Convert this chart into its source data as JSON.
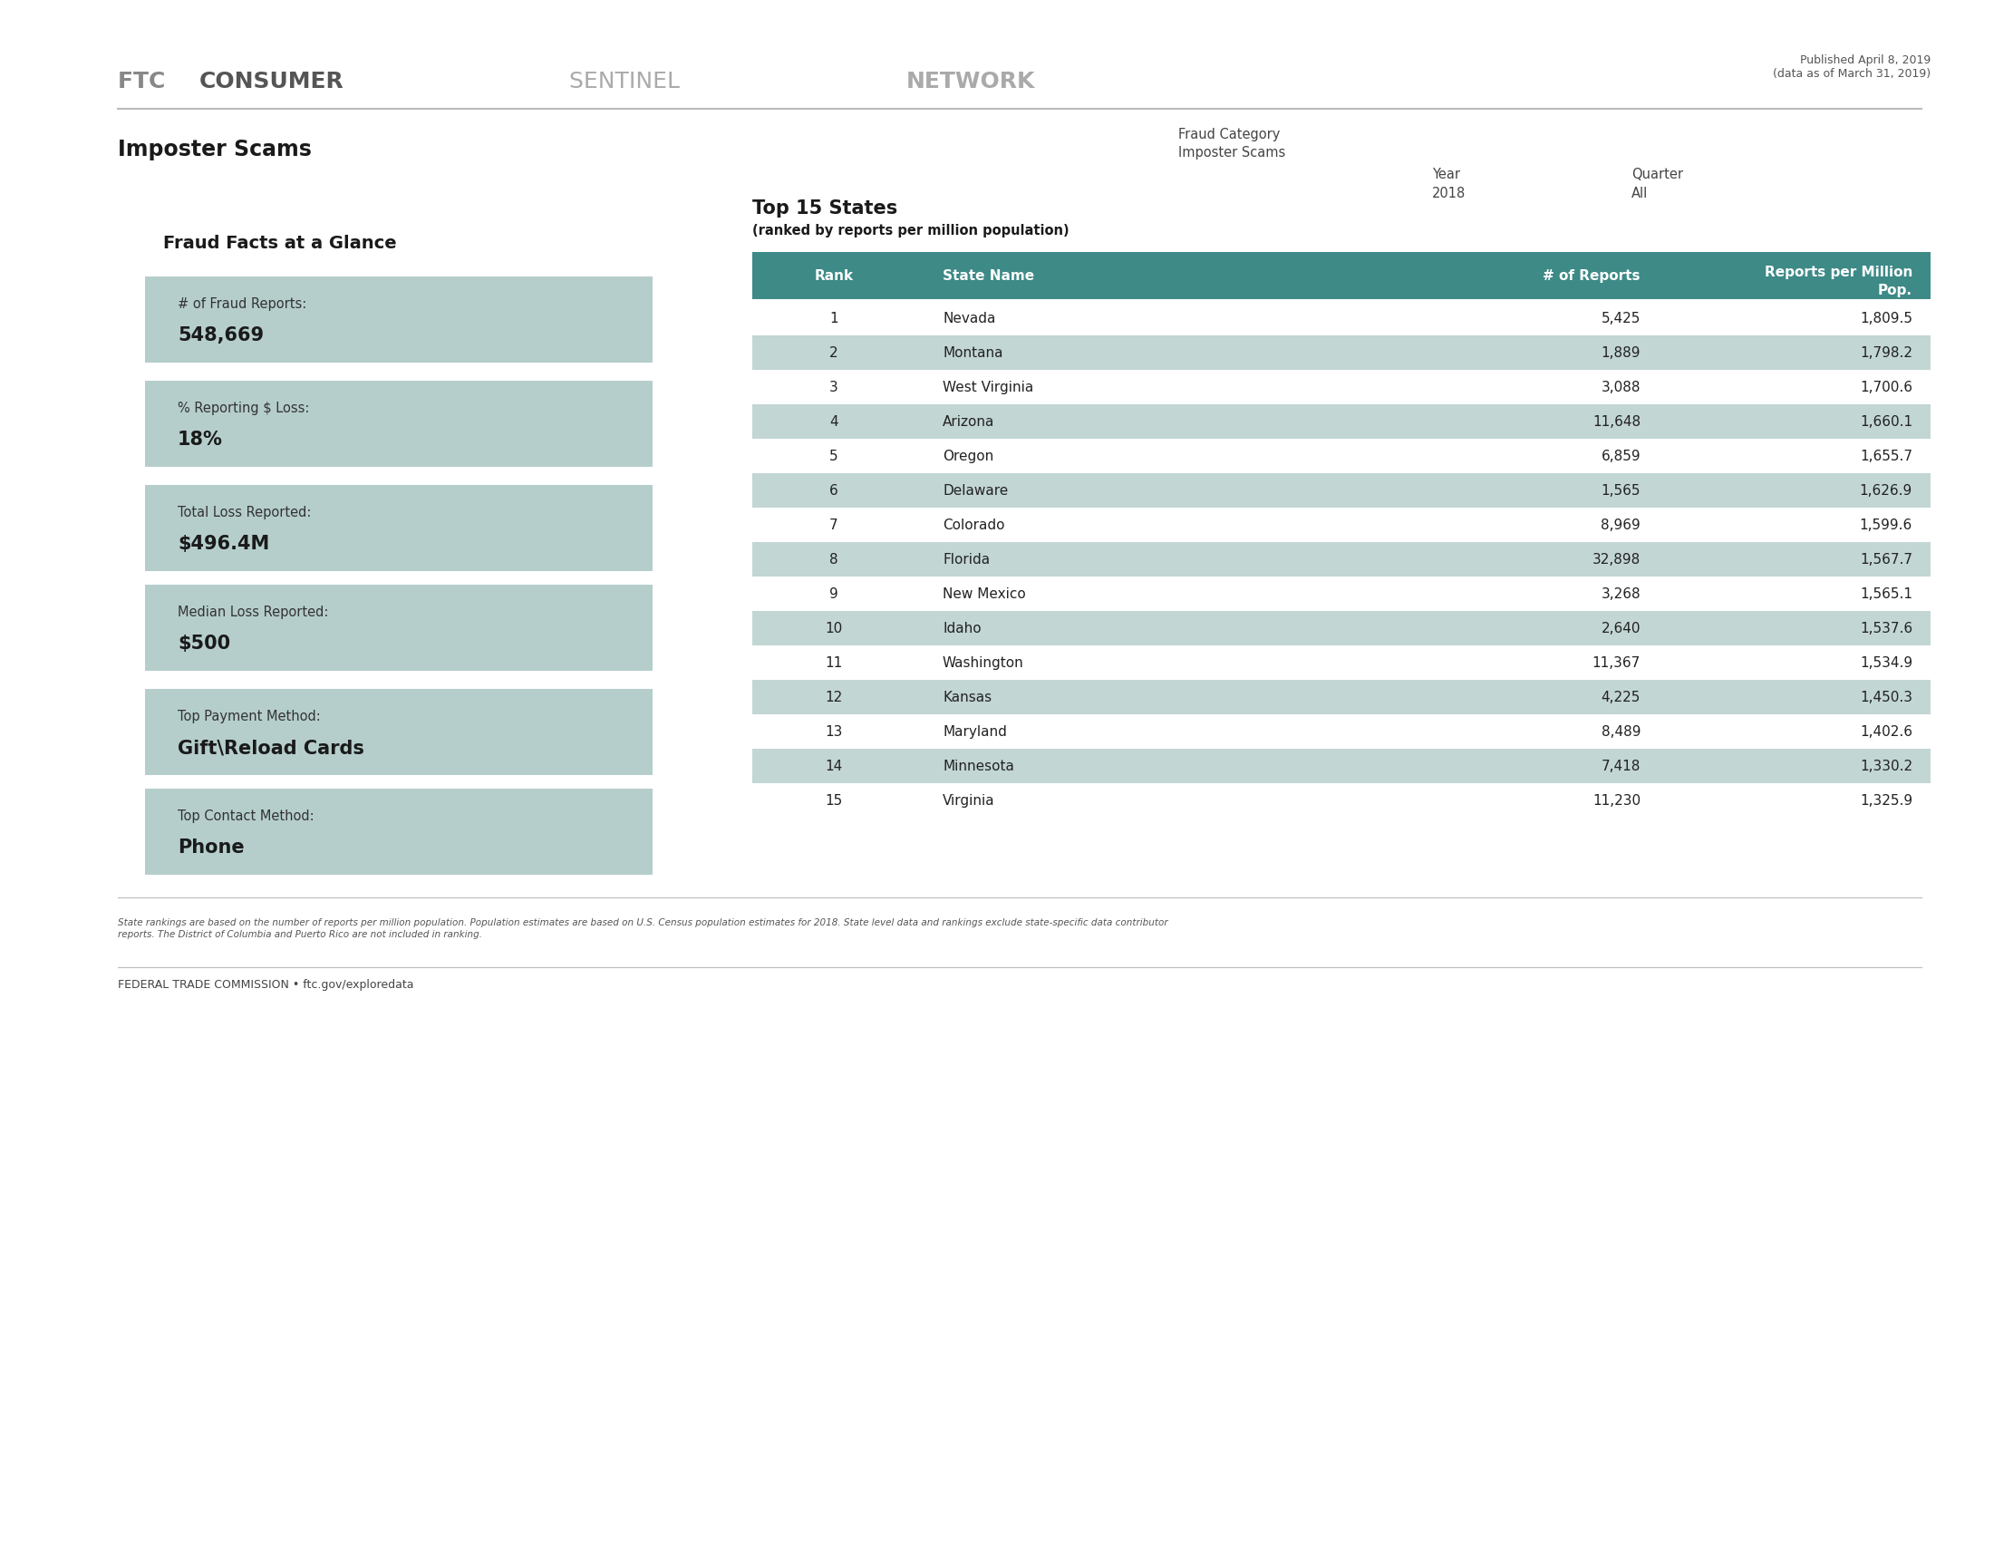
{
  "header_published": "Published April 8, 2019\n(data as of March 31, 2019)",
  "section_title": "Imposter Scams",
  "fraud_category_label": "Fraud Category",
  "fraud_category_value": "Imposter Scams",
  "year_label": "Year",
  "year_value": "2018",
  "quarter_label": "Quarter",
  "quarter_value": "All",
  "facts_title": "Fraud Facts at a Glance",
  "facts": [
    {
      "label": "# of Fraud Reports:",
      "value": "548,669"
    },
    {
      "label": "% Reporting $ Loss:",
      "value": "18%"
    },
    {
      "label": "Total Loss Reported:",
      "value": "$496.4M"
    },
    {
      "label": "Median Loss Reported:",
      "value": "$500"
    },
    {
      "label": "Top Payment Method:",
      "value": "Gift\\Reload Cards"
    },
    {
      "label": "Top Contact Method:",
      "value": "Phone"
    }
  ],
  "table_title": "Top 15 States",
  "table_subtitle": "(ranked by reports per million population)",
  "table_header_color": "#3d8a87",
  "table_row_alt_color": "#c2d6d4",
  "table_row_white": "#ffffff",
  "table_headers": [
    "Rank",
    "State Name",
    "# of Reports",
    "Reports per Million\nPop."
  ],
  "table_data": [
    [
      1,
      "Nevada",
      "5,425",
      "1,809.5"
    ],
    [
      2,
      "Montana",
      "1,889",
      "1,798.2"
    ],
    [
      3,
      "West Virginia",
      "3,088",
      "1,700.6"
    ],
    [
      4,
      "Arizona",
      "11,648",
      "1,660.1"
    ],
    [
      5,
      "Oregon",
      "6,859",
      "1,655.7"
    ],
    [
      6,
      "Delaware",
      "1,565",
      "1,626.9"
    ],
    [
      7,
      "Colorado",
      "8,969",
      "1,599.6"
    ],
    [
      8,
      "Florida",
      "32,898",
      "1,567.7"
    ],
    [
      9,
      "New Mexico",
      "3,268",
      "1,565.1"
    ],
    [
      10,
      "Idaho",
      "2,640",
      "1,537.6"
    ],
    [
      11,
      "Washington",
      "11,367",
      "1,534.9"
    ],
    [
      12,
      "Kansas",
      "4,225",
      "1,450.3"
    ],
    [
      13,
      "Maryland",
      "8,489",
      "1,402.6"
    ],
    [
      14,
      "Minnesota",
      "7,418",
      "1,330.2"
    ],
    [
      15,
      "Virginia",
      "11,230",
      "1,325.9"
    ]
  ],
  "fact_box_color": "#b5cecc",
  "footer_note": "State rankings are based on the number of reports per million population. Population estimates are based on U.S. Census population estimates for 2018. State level data and rankings exclude state-specific data contributor\nreports. The District of Columbia and Puerto Rico are not included in ranking.",
  "footer_ftc": "FEDERAL TRADE COMMISSION • ftc.gov/exploredata",
  "bg_color": "#ffffff"
}
